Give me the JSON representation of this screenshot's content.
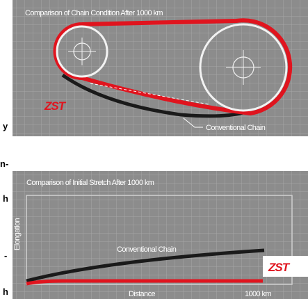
{
  "margin_fragments": [
    "y",
    "n-",
    "h",
    "-",
    "h"
  ],
  "panels": [
    {
      "title": "Comparison of Chain Condition After 1000 km",
      "logo": "ZST",
      "chain_label": "Conventional Chain"
    },
    {
      "title": "Comparison of Initial Stretch After 1000 km",
      "y_axis_label": "Elongation",
      "curve_label": "Conventional Chain",
      "logo": "ZST",
      "x_axis_label": "Distance",
      "x_end_label": "1000 km"
    }
  ]
}
